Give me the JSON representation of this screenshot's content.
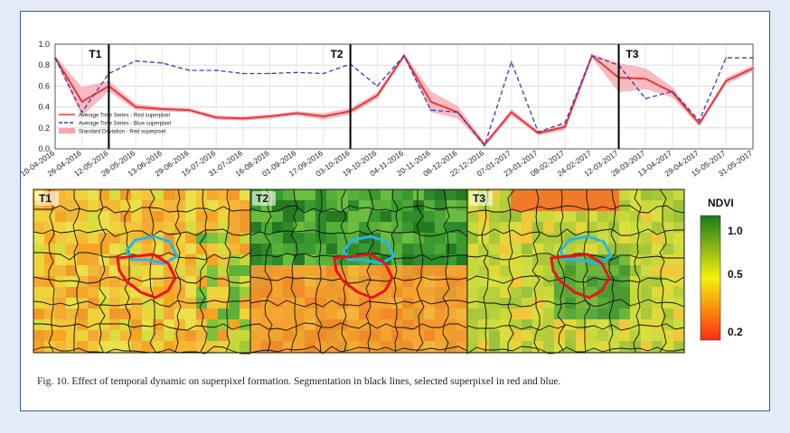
{
  "chart_data": {
    "type": "line",
    "x": [
      "10-04-2016",
      "26-04-2016",
      "12-05-2016",
      "28-05-2016",
      "13-06-2016",
      "29-06-2016",
      "15-07-2016",
      "31-07-2016",
      "16-08-2016",
      "01-09-2016",
      "17-09-2016",
      "03-10-2016",
      "19-10-2016",
      "04-11-2016",
      "20-11-2016",
      "06-12-2016",
      "22-12-2016",
      "07-01-2017",
      "23-01-2017",
      "08-02-2017",
      "24-02-2017",
      "12-03-2017",
      "28-03-2017",
      "13-04-2017",
      "29-04-2017",
      "15-05-2017",
      "31-05-2017"
    ],
    "series": [
      {
        "name": "Average Time Series - Red superpixel",
        "style": "solid",
        "color": "#e8383d",
        "values": [
          0.87,
          0.45,
          0.6,
          0.4,
          0.38,
          0.37,
          0.3,
          0.29,
          0.31,
          0.34,
          0.31,
          0.36,
          0.51,
          0.89,
          0.45,
          0.35,
          0.04,
          0.35,
          0.15,
          0.21,
          0.89,
          0.68,
          0.67,
          0.54,
          0.24,
          0.65,
          0.77
        ]
      },
      {
        "name": "Average Time Series - Blue superpixel",
        "style": "dashed",
        "color": "#3a3ab0",
        "values": [
          0.87,
          0.35,
          0.72,
          0.84,
          0.82,
          0.75,
          0.75,
          0.72,
          0.72,
          0.73,
          0.72,
          0.81,
          0.6,
          0.89,
          0.37,
          0.35,
          0.03,
          0.83,
          0.16,
          0.25,
          0.89,
          0.8,
          0.48,
          0.55,
          0.27,
          0.87,
          0.87
        ]
      }
    ],
    "std_series": {
      "name": "Standard Deviation - Red superpixel",
      "color": "#f4a6ab",
      "values": [
        0.02,
        0.14,
        0.05,
        0.03,
        0.02,
        0.02,
        0.02,
        0.02,
        0.02,
        0.02,
        0.03,
        0.03,
        0.03,
        0.02,
        0.1,
        0.06,
        0.02,
        0.03,
        0.02,
        0.03,
        0.02,
        0.14,
        0.1,
        0.05,
        0.02,
        0.03,
        0.03
      ]
    },
    "vlines": [
      {
        "label": "T1",
        "x": "12-05-2016"
      },
      {
        "label": "T2",
        "x": "03-10-2016"
      },
      {
        "label": "T3",
        "x": "12-03-2017"
      }
    ],
    "yticks": [
      "0.0",
      "0.2",
      "0.4",
      "0.6",
      "0.8",
      "1.0"
    ],
    "ylim": [
      0,
      1
    ],
    "grid": true,
    "legend": "bottom-left"
  },
  "maps": [
    {
      "label": "T1",
      "scheme": "orange-yellow"
    },
    {
      "label": "T2",
      "scheme": "green"
    },
    {
      "label": "T3",
      "scheme": "yellow-green"
    }
  ],
  "colorbar": {
    "title": "NDVI",
    "ticks": [
      "1.0",
      "0.5",
      "0.2"
    ],
    "colors": [
      "#1a7a1a",
      "#f6f00a",
      "#ff2a10"
    ]
  },
  "caption": "Fig. 10.  Effect of temporal dynamic on superpixel formation. Segmentation in black lines, selected superpixel in red and blue."
}
